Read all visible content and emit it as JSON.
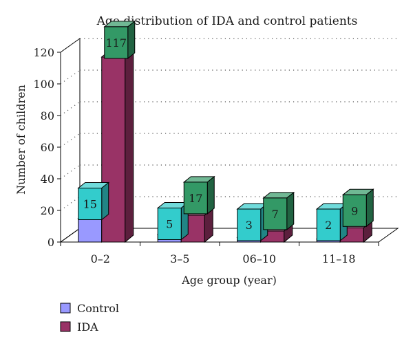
{
  "chart_data": {
    "type": "bar",
    "title": "Age distribution of IDA and control patients",
    "xlabel": "Age group (year)",
    "ylabel": "Number of children",
    "categories": [
      "0–2",
      "3–5",
      "06–10",
      "11–18"
    ],
    "ylim": [
      0,
      120
    ],
    "yticks": [
      0,
      20,
      40,
      60,
      80,
      100,
      120
    ],
    "grid": true,
    "legend_position": "bottom-left",
    "series": [
      {
        "name": "Control",
        "values": [
          15,
          5,
          3,
          2
        ],
        "color": "#9999ff",
        "label_color": "#33cccc"
      },
      {
        "name": "IDA",
        "values": [
          117,
          17,
          7,
          9
        ],
        "color": "#993366",
        "label_color": "#339966"
      }
    ]
  }
}
